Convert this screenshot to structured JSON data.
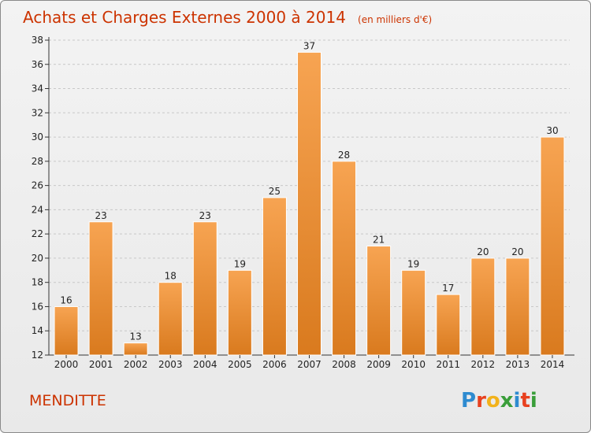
{
  "header": {
    "title": "Achats et Charges Externes 2000 à 2014",
    "unit": "(en milliers d'€)"
  },
  "footer": {
    "place": "MENDITTE",
    "brand_letters": [
      "P",
      "r",
      "o",
      "x",
      "i",
      "t",
      "i"
    ],
    "brand_colors": [
      "#2e8bd0",
      "#e8411f",
      "#f2b21b",
      "#3a9e3a",
      "#2e8bd0",
      "#e8411f",
      "#3a9e3a"
    ]
  },
  "colors": {
    "bar_light": "#f7a452",
    "bar_dark": "#d97a1e",
    "bar_edge": "#ffffff",
    "grid": "#c8c8c8"
  },
  "chart_data": {
    "type": "bar",
    "categories": [
      "2000",
      "2001",
      "2002",
      "2003",
      "2004",
      "2005",
      "2006",
      "2007",
      "2008",
      "2009",
      "2010",
      "2011",
      "2012",
      "2013",
      "2014"
    ],
    "values": [
      16,
      23,
      13,
      18,
      23,
      19,
      25,
      37,
      28,
      21,
      19,
      17,
      20,
      20,
      30
    ],
    "ylim": [
      12,
      38
    ],
    "yticks": [
      12,
      14,
      16,
      18,
      20,
      22,
      24,
      26,
      28,
      30,
      32,
      34,
      36,
      38
    ],
    "grid": "horizontal dashed",
    "title": "Achats et Charges Externes 2000 à 2014",
    "xlabel": "",
    "ylabel": ""
  }
}
